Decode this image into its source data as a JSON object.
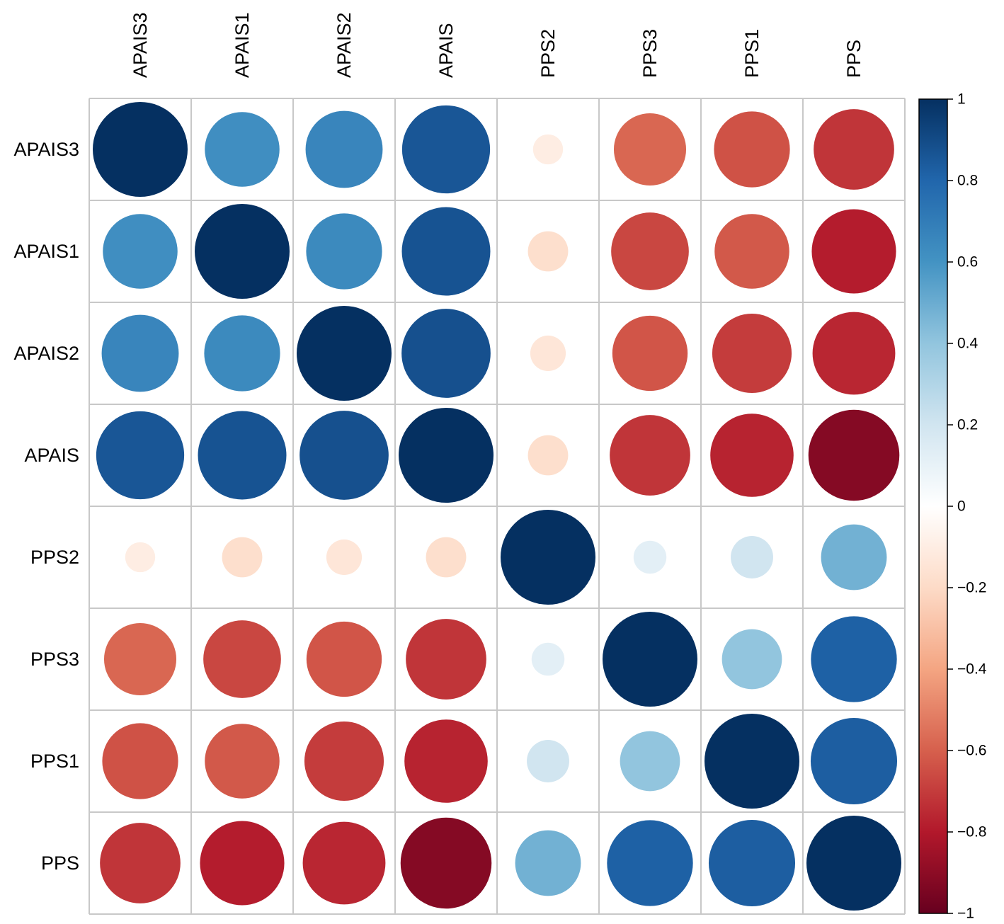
{
  "chart_data": {
    "type": "heatmap",
    "style": "correlation-circles",
    "title": "",
    "variables": [
      "APAIS3",
      "APAIS1",
      "APAIS2",
      "APAIS",
      "PPS2",
      "PPS3",
      "PPS1",
      "PPS"
    ],
    "matrix": [
      [
        1.0,
        0.62,
        0.66,
        0.86,
        -0.1,
        -0.58,
        -0.64,
        -0.72
      ],
      [
        0.62,
        1.0,
        0.64,
        0.87,
        -0.18,
        -0.67,
        -0.62,
        -0.79
      ],
      [
        0.66,
        0.64,
        1.0,
        0.88,
        -0.14,
        -0.63,
        -0.7,
        -0.76
      ],
      [
        0.86,
        0.87,
        0.88,
        1.0,
        -0.18,
        -0.72,
        -0.77,
        -0.92
      ],
      [
        -0.1,
        -0.18,
        -0.14,
        -0.18,
        1.0,
        0.12,
        0.2,
        0.48
      ],
      [
        -0.58,
        -0.67,
        -0.63,
        -0.72,
        0.12,
        1.0,
        0.4,
        0.82
      ],
      [
        -0.64,
        -0.62,
        -0.7,
        -0.77,
        0.2,
        0.4,
        1.0,
        0.83
      ],
      [
        -0.72,
        -0.79,
        -0.76,
        -0.92,
        0.48,
        0.82,
        0.83,
        1.0
      ]
    ],
    "colorbar": {
      "min": -1,
      "max": 1,
      "ticks": [
        "1",
        "0.8",
        "0.6",
        "0.4",
        "0.2",
        "0",
        "−0.2",
        "−0.4",
        "−0.6",
        "−0.8",
        "−1"
      ],
      "tick_values": [
        1,
        0.8,
        0.6,
        0.4,
        0.2,
        0,
        -0.2,
        -0.4,
        -0.6,
        -0.8,
        -1
      ]
    },
    "colors": [
      "#67001F",
      "#B2182B",
      "#D6604D",
      "#F4A582",
      "#FDDBC7",
      "#FFFFFF",
      "#D1E5F0",
      "#92C5DE",
      "#4393C3",
      "#2166AC",
      "#053061"
    ],
    "grid_color": "#c8c8c8"
  }
}
